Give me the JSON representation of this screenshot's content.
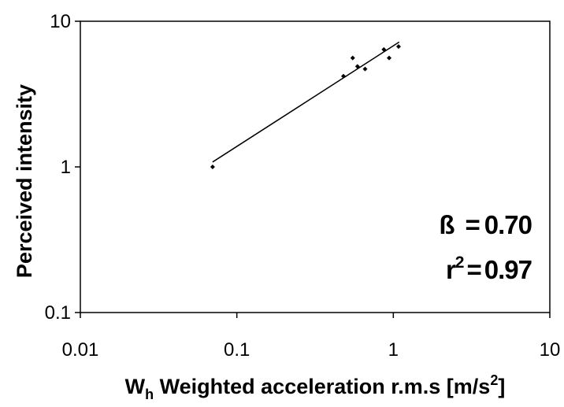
{
  "chart_data": {
    "type": "scatter",
    "xscale": "log",
    "yscale": "log",
    "xlim": [
      0.01,
      10
    ],
    "ylim": [
      0.1,
      10
    ],
    "grid": false,
    "xticks": [
      "0.01",
      "0.1",
      "1",
      "10"
    ],
    "yticks": [
      "0.1",
      "1",
      "10"
    ],
    "xlabel": {
      "symbol": "W",
      "subscript": "h",
      "text": " Weighted acceleration r.m.s [m/s",
      "superscript": "2",
      "suffix": "]"
    },
    "ylabel": "Perceived intensity",
    "points": [
      {
        "x": 0.07,
        "y": 1.0
      },
      {
        "x": 0.48,
        "y": 4.2
      },
      {
        "x": 0.55,
        "y": 5.6
      },
      {
        "x": 0.59,
        "y": 4.9
      },
      {
        "x": 0.66,
        "y": 4.7
      },
      {
        "x": 0.87,
        "y": 6.4
      },
      {
        "x": 0.94,
        "y": 5.6
      },
      {
        "x": 1.08,
        "y": 6.7
      }
    ],
    "fit_line": {
      "x": [
        0.07,
        1.09
      ],
      "y": [
        1.08,
        7.2
      ]
    },
    "annotations": [
      {
        "label": "ß",
        "operator": "=",
        "value": "0.70"
      },
      {
        "label": "r",
        "superscript": "2",
        "operator": "=",
        "value": "0.97"
      }
    ],
    "colors": {
      "points": "#000000",
      "line": "#000000",
      "frame": "#000000"
    }
  }
}
